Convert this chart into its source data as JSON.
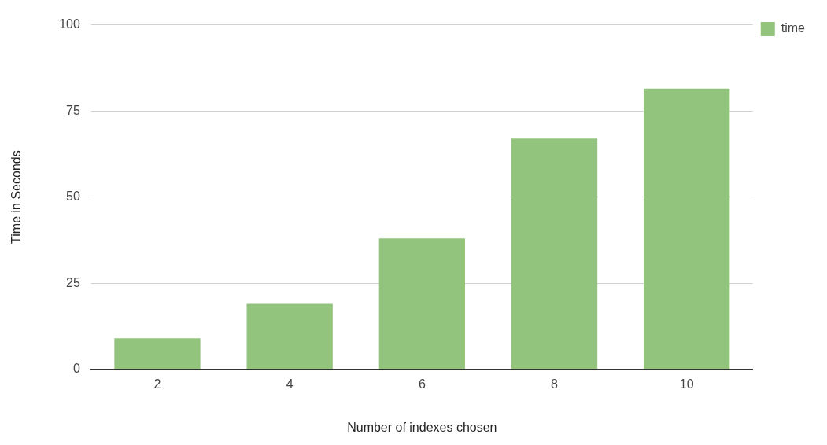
{
  "chart_data": {
    "type": "bar",
    "xlabel": "Number of indexes chosen",
    "ylabel": "Time in Seconds",
    "categories": [
      "2",
      "4",
      "6",
      "8",
      "10"
    ],
    "series": [
      {
        "name": "time",
        "color": "#93c47d",
        "values": [
          9,
          19,
          38,
          67,
          81.5
        ]
      }
    ],
    "ylim": [
      0,
      100
    ],
    "yticks": [
      0,
      25,
      50,
      75,
      100
    ],
    "grid": "y",
    "legend": "top right"
  }
}
